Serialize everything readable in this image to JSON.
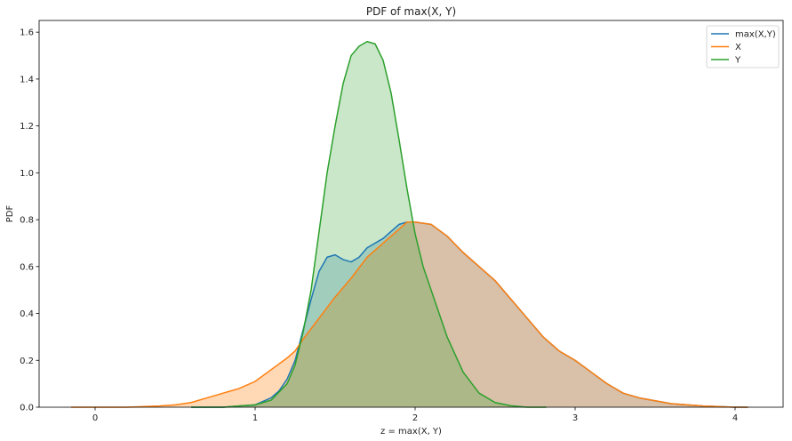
{
  "chart_data": {
    "type": "area",
    "title": "PDF of max(X, Y)",
    "xlabel": "z = max(X, Y)",
    "ylabel": "PDF",
    "xlim": [
      -0.35,
      4.3
    ],
    "ylim": [
      0,
      1.65
    ],
    "xticks": [
      0,
      1,
      2,
      3,
      4
    ],
    "yticks": [
      0.0,
      0.2,
      0.4,
      0.6,
      0.8,
      1.0,
      1.2,
      1.4,
      1.6
    ],
    "xtick_labels": [
      "0",
      "1",
      "2",
      "3",
      "4"
    ],
    "ytick_labels": [
      "0.0",
      "0.2",
      "0.4",
      "0.6",
      "0.8",
      "1.0",
      "1.2",
      "1.4",
      "1.6"
    ],
    "legend_position": "top-right",
    "grid": false,
    "series": [
      {
        "name": "max(X,Y)",
        "color": "#1f77b4",
        "fill_opacity": 0.25,
        "x": [
          0.6,
          0.8,
          0.9,
          1.0,
          1.1,
          1.15,
          1.2,
          1.25,
          1.3,
          1.35,
          1.4,
          1.45,
          1.5,
          1.55,
          1.6,
          1.65,
          1.7,
          1.8,
          1.9,
          1.95,
          2.0,
          2.1,
          2.2,
          2.3,
          2.4,
          2.5,
          2.6,
          2.7,
          2.8,
          2.9,
          3.0,
          3.1,
          3.2,
          3.3,
          3.4,
          3.6,
          3.8,
          4.0,
          4.08
        ],
        "y": [
          0.0,
          0.0,
          0.005,
          0.01,
          0.04,
          0.07,
          0.12,
          0.2,
          0.33,
          0.46,
          0.58,
          0.64,
          0.65,
          0.63,
          0.62,
          0.64,
          0.68,
          0.72,
          0.78,
          0.79,
          0.79,
          0.78,
          0.73,
          0.66,
          0.6,
          0.54,
          0.46,
          0.38,
          0.3,
          0.24,
          0.2,
          0.15,
          0.1,
          0.06,
          0.04,
          0.015,
          0.005,
          0.0,
          0.0
        ]
      },
      {
        "name": "X",
        "color": "#ff7f0e",
        "fill_opacity": 0.3,
        "x": [
          -0.15,
          0.2,
          0.4,
          0.5,
          0.6,
          0.7,
          0.8,
          0.9,
          1.0,
          1.1,
          1.2,
          1.25,
          1.3,
          1.4,
          1.5,
          1.6,
          1.7,
          1.8,
          1.9,
          1.95,
          2.0,
          2.1,
          2.2,
          2.3,
          2.4,
          2.5,
          2.6,
          2.7,
          2.8,
          2.9,
          3.0,
          3.1,
          3.2,
          3.3,
          3.4,
          3.6,
          3.8,
          4.0,
          4.08
        ],
        "y": [
          0.0,
          0.0,
          0.005,
          0.01,
          0.02,
          0.04,
          0.06,
          0.08,
          0.11,
          0.16,
          0.21,
          0.24,
          0.29,
          0.38,
          0.47,
          0.55,
          0.64,
          0.7,
          0.76,
          0.79,
          0.79,
          0.78,
          0.73,
          0.66,
          0.6,
          0.54,
          0.46,
          0.38,
          0.3,
          0.24,
          0.2,
          0.15,
          0.1,
          0.06,
          0.04,
          0.015,
          0.005,
          0.0,
          0.0
        ]
      },
      {
        "name": "Y",
        "color": "#2ca02c",
        "fill_opacity": 0.25,
        "x": [
          0.6,
          0.8,
          0.9,
          1.0,
          1.1,
          1.2,
          1.25,
          1.3,
          1.35,
          1.4,
          1.45,
          1.5,
          1.55,
          1.6,
          1.65,
          1.7,
          1.75,
          1.8,
          1.85,
          1.9,
          1.95,
          2.0,
          2.05,
          2.1,
          2.15,
          2.2,
          2.3,
          2.4,
          2.5,
          2.6,
          2.7,
          2.82
        ],
        "y": [
          0.0,
          0.0,
          0.005,
          0.01,
          0.03,
          0.1,
          0.18,
          0.32,
          0.5,
          0.75,
          1.0,
          1.2,
          1.38,
          1.5,
          1.54,
          1.56,
          1.55,
          1.48,
          1.34,
          1.14,
          0.93,
          0.74,
          0.6,
          0.5,
          0.4,
          0.3,
          0.15,
          0.06,
          0.02,
          0.006,
          0.0,
          0.0
        ]
      }
    ]
  }
}
